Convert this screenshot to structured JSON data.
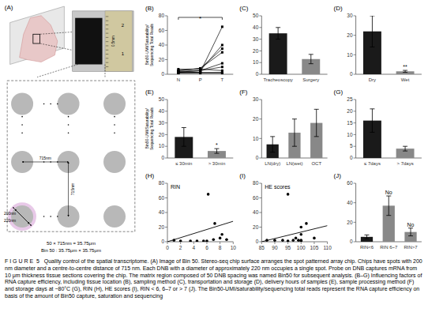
{
  "chart_data": [
    {
      "type": "diagram",
      "title": "(A)",
      "annotations": [
        "2",
        "1",
        "0.5mm",
        "715nm",
        "715nm",
        "200nm",
        "220nm",
        "50 × 715nm = 35.75μm",
        "Bin 50 : 35.75μm × 35.75μm"
      ]
    },
    {
      "type": "line",
      "title": "(B)",
      "categories": [
        "N",
        "P",
        "T"
      ],
      "ylabel": "Bin50-UMI/Saturability/Sequencing Total Reads",
      "color": "#000000",
      "marker": "square",
      "series": [
        {
          "values": [
            2,
            2,
            2
          ]
        },
        {
          "values": [
            2,
            3,
            65
          ]
        },
        {
          "values": [
            3,
            5,
            40
          ]
        },
        {
          "values": [
            5,
            8,
            35
          ]
        },
        {
          "values": [
            7,
            7,
            5
          ]
        },
        {
          "values": [
            3,
            5,
            10
          ]
        },
        {
          "values": [
            4,
            5,
            15
          ]
        },
        {
          "values": [
            5,
            8,
            30
          ]
        },
        {
          "values": [
            2,
            2,
            2
          ]
        },
        {
          "values": [
            2,
            2,
            2
          ]
        }
      ],
      "ylim": [
        0,
        80
      ],
      "yticks": [
        0,
        20,
        40,
        60,
        80
      ],
      "annotations": [
        "*"
      ]
    },
    {
      "type": "bar",
      "title": "(C)",
      "categories": [
        "Tracheoscopy",
        "Surgery"
      ],
      "values": [
        35,
        13
      ],
      "errors": [
        5,
        4
      ],
      "colors": [
        "#1a1a1a",
        "#888888"
      ],
      "ylim": [
        0,
        50
      ],
      "yticks": [
        0,
        10,
        20,
        30,
        40,
        50
      ]
    },
    {
      "type": "bar",
      "title": "(D)",
      "categories": [
        "Dry",
        "Wet"
      ],
      "values": [
        22,
        1.5
      ],
      "errors": [
        8,
        0.5
      ],
      "colors": [
        "#1a1a1a",
        "#888888"
      ],
      "ylim": [
        0,
        30
      ],
      "yticks": [
        0,
        10,
        20,
        30
      ],
      "annotations": [
        null,
        "**"
      ]
    },
    {
      "type": "bar",
      "title": "(E)",
      "categories": [
        "≤ 30min",
        "> 30min"
      ],
      "values": [
        18,
        6
      ],
      "errors": [
        8,
        2
      ],
      "colors": [
        "#1a1a1a",
        "#888888"
      ],
      "ylabel": "Bin50-UMI/Saturability/Sequencing Total Reads",
      "ylim": [
        0,
        50
      ],
      "yticks": [
        0,
        10,
        20,
        30,
        40,
        50
      ],
      "annotations": [
        null,
        "*"
      ]
    },
    {
      "type": "bar",
      "title": "(F)",
      "categories": [
        "LN(dry)",
        "LN(wet)",
        "OCT"
      ],
      "values": [
        7,
        13,
        18
      ],
      "errors": [
        4,
        7,
        7
      ],
      "colors": [
        "#1a1a1a",
        "#888888",
        "#888888"
      ],
      "ylim": [
        0,
        30
      ],
      "yticks": [
        0,
        10,
        20,
        30
      ]
    },
    {
      "type": "bar",
      "title": "(G)",
      "categories": [
        "≤ 7days",
        "> 7days"
      ],
      "values": [
        16,
        4
      ],
      "errors": [
        5,
        1
      ],
      "colors": [
        "#1a1a1a",
        "#888888"
      ],
      "ylim": [
        0,
        25
      ],
      "yticks": [
        0,
        5,
        10,
        15,
        20,
        25
      ]
    },
    {
      "type": "scatter",
      "title": "(H)",
      "color": "#000000",
      "series": [
        {
          "type": "scatter",
          "x": [
            1.0,
            2.0,
            3.5,
            4.5,
            5.5,
            6.0,
            6.2,
            7.0,
            7.2,
            8.0,
            8.3,
            9.0
          ],
          "values": [
            2,
            1,
            1,
            1,
            1,
            1,
            65,
            3,
            25,
            5,
            10,
            3
          ]
        },
        {
          "type": "line",
          "x": [
            0,
            10
          ],
          "values": [
            0,
            28
          ]
        }
      ],
      "xlim": [
        0,
        10
      ],
      "xticks": [
        0,
        2,
        4,
        6,
        8,
        10
      ],
      "ylim": [
        0,
        80
      ],
      "yticks": [
        0,
        20,
        40,
        60,
        80
      ],
      "annotations": [
        "RIN"
      ]
    },
    {
      "type": "scatter",
      "title": "(I)",
      "color": "#000000",
      "series": [
        {
          "type": "scatter",
          "x": [
            87,
            90,
            93,
            95,
            95,
            97,
            98,
            99,
            100,
            100,
            100,
            100,
            102,
            105
          ],
          "values": [
            2,
            2,
            2,
            1,
            65,
            2,
            5,
            2,
            2,
            10,
            20,
            1,
            25,
            5
          ]
        },
        {
          "type": "line",
          "x": [
            85,
            110
          ],
          "values": [
            0,
            22
          ]
        }
      ],
      "xlim": [
        85,
        110
      ],
      "xticks": [
        85,
        90,
        95,
        100,
        105,
        110
      ],
      "ylim": [
        0,
        80
      ],
      "yticks": [
        0,
        20,
        40,
        60,
        80
      ],
      "annotations": [
        "HE scores"
      ]
    },
    {
      "type": "bar",
      "title": "(J)",
      "categories": [
        "RIN<6",
        "RIN 6~7",
        "RIN>7"
      ],
      "values": [
        5,
        37,
        10
      ],
      "errors": [
        2,
        10,
        4
      ],
      "colors": [
        "#1a1a1a",
        "#888888",
        "#888888"
      ],
      "ylim": [
        0,
        60
      ],
      "yticks": [
        0,
        20,
        40,
        60
      ],
      "annotations": [
        null,
        "No",
        "No"
      ]
    }
  ],
  "caption": "F I G U R E  5   Quality control of the spatial transcriptome. (A) Image of Bin 50. Stereo-seq chip surface arranges the spot patterned array chip. Chips have spots with 200 nm diameter and a centre-to-centre distance of 715 nm. Each DNB with a diameter of approximately 220 nm occupies a single spot. Probe on DNB captures mRNA from 10 μm thickness tissue sections covering the chip. The matrix region composed of 50 DNB spacing was named Bin50 for subsequent analysis. (B–G) Influencing factors of RNA capture efficiency, including tissue location (B), sampling method (C), transportation and storage (D), delivery hours of samples (E), sample processing method (F) and storage days at −80°C (G), RIN (H), HE scores (I), RIN < 6, 6–7 or > 7 (J). The Bin50-UMI/saturability/sequencing total reads represent the RNA capture efficiency on basis of the amount of Bin50 capture, saturation and sequencing"
}
